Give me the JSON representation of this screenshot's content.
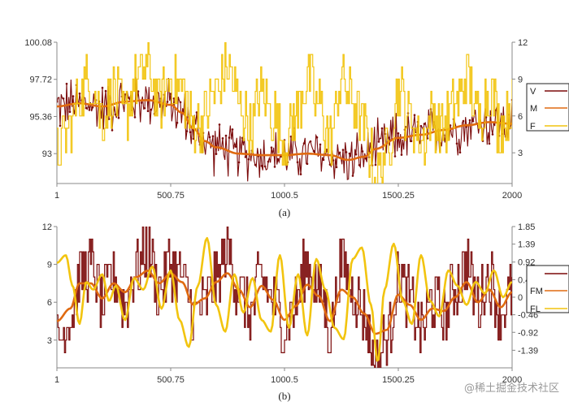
{
  "watermark": "@稀土掘金技术社区",
  "chart_data": [
    {
      "type": "line",
      "caption": "(a)",
      "x_range": [
        1,
        2000
      ],
      "x_ticks": [
        "1",
        "500.75",
        "1000.5",
        "1500.25",
        "2000"
      ],
      "left_y_range": [
        91.1,
        100.08
      ],
      "left_y_ticks": [
        "93",
        "95.36",
        "97.72",
        "100.08"
      ],
      "right_y_range": [
        0.5,
        12
      ],
      "right_y_ticks": [
        "3",
        "6",
        "9",
        "12"
      ],
      "legend_position": "right",
      "series": [
        {
          "name": "V",
          "axis": "left",
          "style": "noisy",
          "color": "#7b0a0a",
          "x": [
            1,
            100,
            200,
            300,
            400,
            500,
            550,
            600,
            650,
            700,
            800,
            900,
            1000,
            1100,
            1200,
            1280,
            1350,
            1400,
            1500,
            1600,
            1700,
            1800,
            1900,
            2000
          ],
          "values": [
            96.0,
            96.2,
            96.0,
            96.3,
            96.4,
            96.1,
            95.6,
            94.6,
            93.8,
            93.4,
            93.0,
            92.9,
            92.9,
            93.0,
            92.9,
            92.6,
            92.8,
            93.3,
            94.0,
            94.2,
            94.5,
            94.8,
            95.0,
            94.9
          ],
          "noise": 1.6
        },
        {
          "name": "M",
          "axis": "left",
          "style": "smooth",
          "color": "#e06a10",
          "x": [
            1,
            100,
            200,
            300,
            400,
            500,
            550,
            600,
            650,
            700,
            800,
            900,
            1000,
            1100,
            1200,
            1280,
            1350,
            1400,
            1500,
            1600,
            1700,
            1800,
            1900,
            2000
          ],
          "values": [
            96.0,
            96.2,
            96.0,
            96.3,
            96.4,
            96.1,
            95.6,
            94.6,
            93.8,
            93.4,
            93.0,
            92.9,
            92.9,
            93.0,
            92.9,
            92.6,
            92.8,
            93.3,
            94.0,
            94.2,
            94.5,
            94.8,
            95.0,
            94.9
          ]
        },
        {
          "name": "F",
          "axis": "right",
          "style": "step",
          "color": "#f2c40f",
          "x": [
            1,
            60,
            100,
            150,
            200,
            250,
            300,
            350,
            400,
            450,
            500,
            550,
            600,
            650,
            700,
            750,
            800,
            850,
            900,
            950,
            1000,
            1050,
            1100,
            1150,
            1200,
            1250,
            1300,
            1350,
            1400,
            1450,
            1500,
            1550,
            1600,
            1650,
            1700,
            1750,
            1800,
            1850,
            1900,
            1950,
            2000
          ],
          "values": [
            3,
            5,
            8,
            9,
            6,
            8,
            6,
            9,
            10,
            7,
            9,
            8,
            5,
            6,
            8,
            10,
            7,
            5,
            8,
            6,
            4,
            6,
            9,
            7,
            4,
            9,
            7,
            5,
            1,
            3,
            8,
            6,
            4,
            6,
            5,
            7,
            9,
            6,
            8,
            5,
            7
          ],
          "noise": 2.5
        }
      ]
    },
    {
      "type": "line",
      "caption": "(b)",
      "x_range": [
        1,
        2000
      ],
      "x_ticks": [
        "1",
        "500.75",
        "1000.5",
        "1500.25",
        "2000"
      ],
      "left_y_range": [
        0.8,
        12
      ],
      "left_y_ticks": [
        "3",
        "6",
        "9",
        "12"
      ],
      "right_y_range": [
        -1.85,
        1.85
      ],
      "right_y_ticks": [
        "-1.39",
        "-0.92",
        "-0.46",
        "0",
        "0.46",
        "0.92",
        "1.39",
        "1.85"
      ],
      "legend_position": "right",
      "series": [
        {
          "name": "",
          "axis": "left",
          "style": "step",
          "color": "#7b0a0a",
          "x": [
            1,
            60,
            100,
            150,
            200,
            250,
            300,
            350,
            400,
            450,
            500,
            550,
            600,
            650,
            700,
            750,
            800,
            850,
            900,
            950,
            1000,
            1050,
            1100,
            1150,
            1200,
            1250,
            1300,
            1350,
            1400,
            1450,
            1500,
            1550,
            1600,
            1650,
            1700,
            1750,
            1800,
            1850,
            1900,
            1950,
            2000
          ],
          "values": [
            3,
            5,
            8,
            9,
            6,
            8,
            6,
            9,
            10,
            7,
            9,
            8,
            5,
            6,
            8,
            10,
            7,
            5,
            8,
            6,
            4,
            6,
            9,
            7,
            4,
            9,
            7,
            5,
            1,
            3,
            8,
            6,
            4,
            6,
            5,
            7,
            9,
            6,
            8,
            5,
            7
          ],
          "noise": 2.5
        },
        {
          "name": "FM",
          "axis": "left",
          "style": "smooth",
          "color": "#e06a10",
          "x": [
            1,
            60,
            100,
            150,
            200,
            250,
            300,
            350,
            400,
            450,
            500,
            550,
            600,
            650,
            700,
            750,
            800,
            850,
            900,
            950,
            1000,
            1050,
            1100,
            1150,
            1200,
            1250,
            1300,
            1350,
            1400,
            1450,
            1500,
            1550,
            1600,
            1650,
            1700,
            1750,
            1800,
            1850,
            1900,
            1950,
            2000
          ],
          "values": [
            4.5,
            5.5,
            7.5,
            7.5,
            6.3,
            7.5,
            6.8,
            8.0,
            8.5,
            7.5,
            8.3,
            7.6,
            5.8,
            6.3,
            7.6,
            8.3,
            7.0,
            5.6,
            7.3,
            6.2,
            4.6,
            5.7,
            7.4,
            6.5,
            4.5,
            7.0,
            6.4,
            5.1,
            3.5,
            3.8,
            6.6,
            5.8,
            4.6,
            5.5,
            5.3,
            6.4,
            7.6,
            6.0,
            7.0,
            5.6,
            6.8
          ]
        },
        {
          "name": "FL",
          "axis": "right",
          "style": "smooth",
          "color": "#f2c40f",
          "x": [
            1,
            40,
            70,
            100,
            130,
            160,
            200,
            230,
            260,
            300,
            340,
            380,
            420,
            460,
            500,
            540,
            580,
            620,
            660,
            700,
            740,
            780,
            820,
            860,
            900,
            940,
            980,
            1020,
            1060,
            1100,
            1140,
            1180,
            1220,
            1260,
            1300,
            1340,
            1380,
            1410,
            1440,
            1480,
            1520,
            1560,
            1600,
            1640,
            1680,
            1720,
            1760,
            1800,
            1840,
            1880,
            1920,
            1960,
            2000
          ],
          "values": [
            0.9,
            1.1,
            0.3,
            -0.7,
            0.4,
            0.2,
            0.6,
            -0.1,
            0.3,
            -0.6,
            0.5,
            0.2,
            0.8,
            -0.3,
            0.7,
            -0.6,
            -1.3,
            0.3,
            1.55,
            -0.2,
            -0.9,
            0.6,
            -0.4,
            0.5,
            -0.6,
            -0.9,
            1.1,
            -0.8,
            0.6,
            -1.0,
            1.0,
            0.2,
            -0.8,
            -1.1,
            1.0,
            1.3,
            -0.2,
            -1.7,
            0.2,
            1.4,
            -0.1,
            -0.7,
            1.1,
            -0.1,
            -0.5,
            0.7,
            0.3,
            -0.2,
            0.4,
            0.1,
            0.7,
            0.0,
            0.4
          ]
        }
      ]
    }
  ]
}
